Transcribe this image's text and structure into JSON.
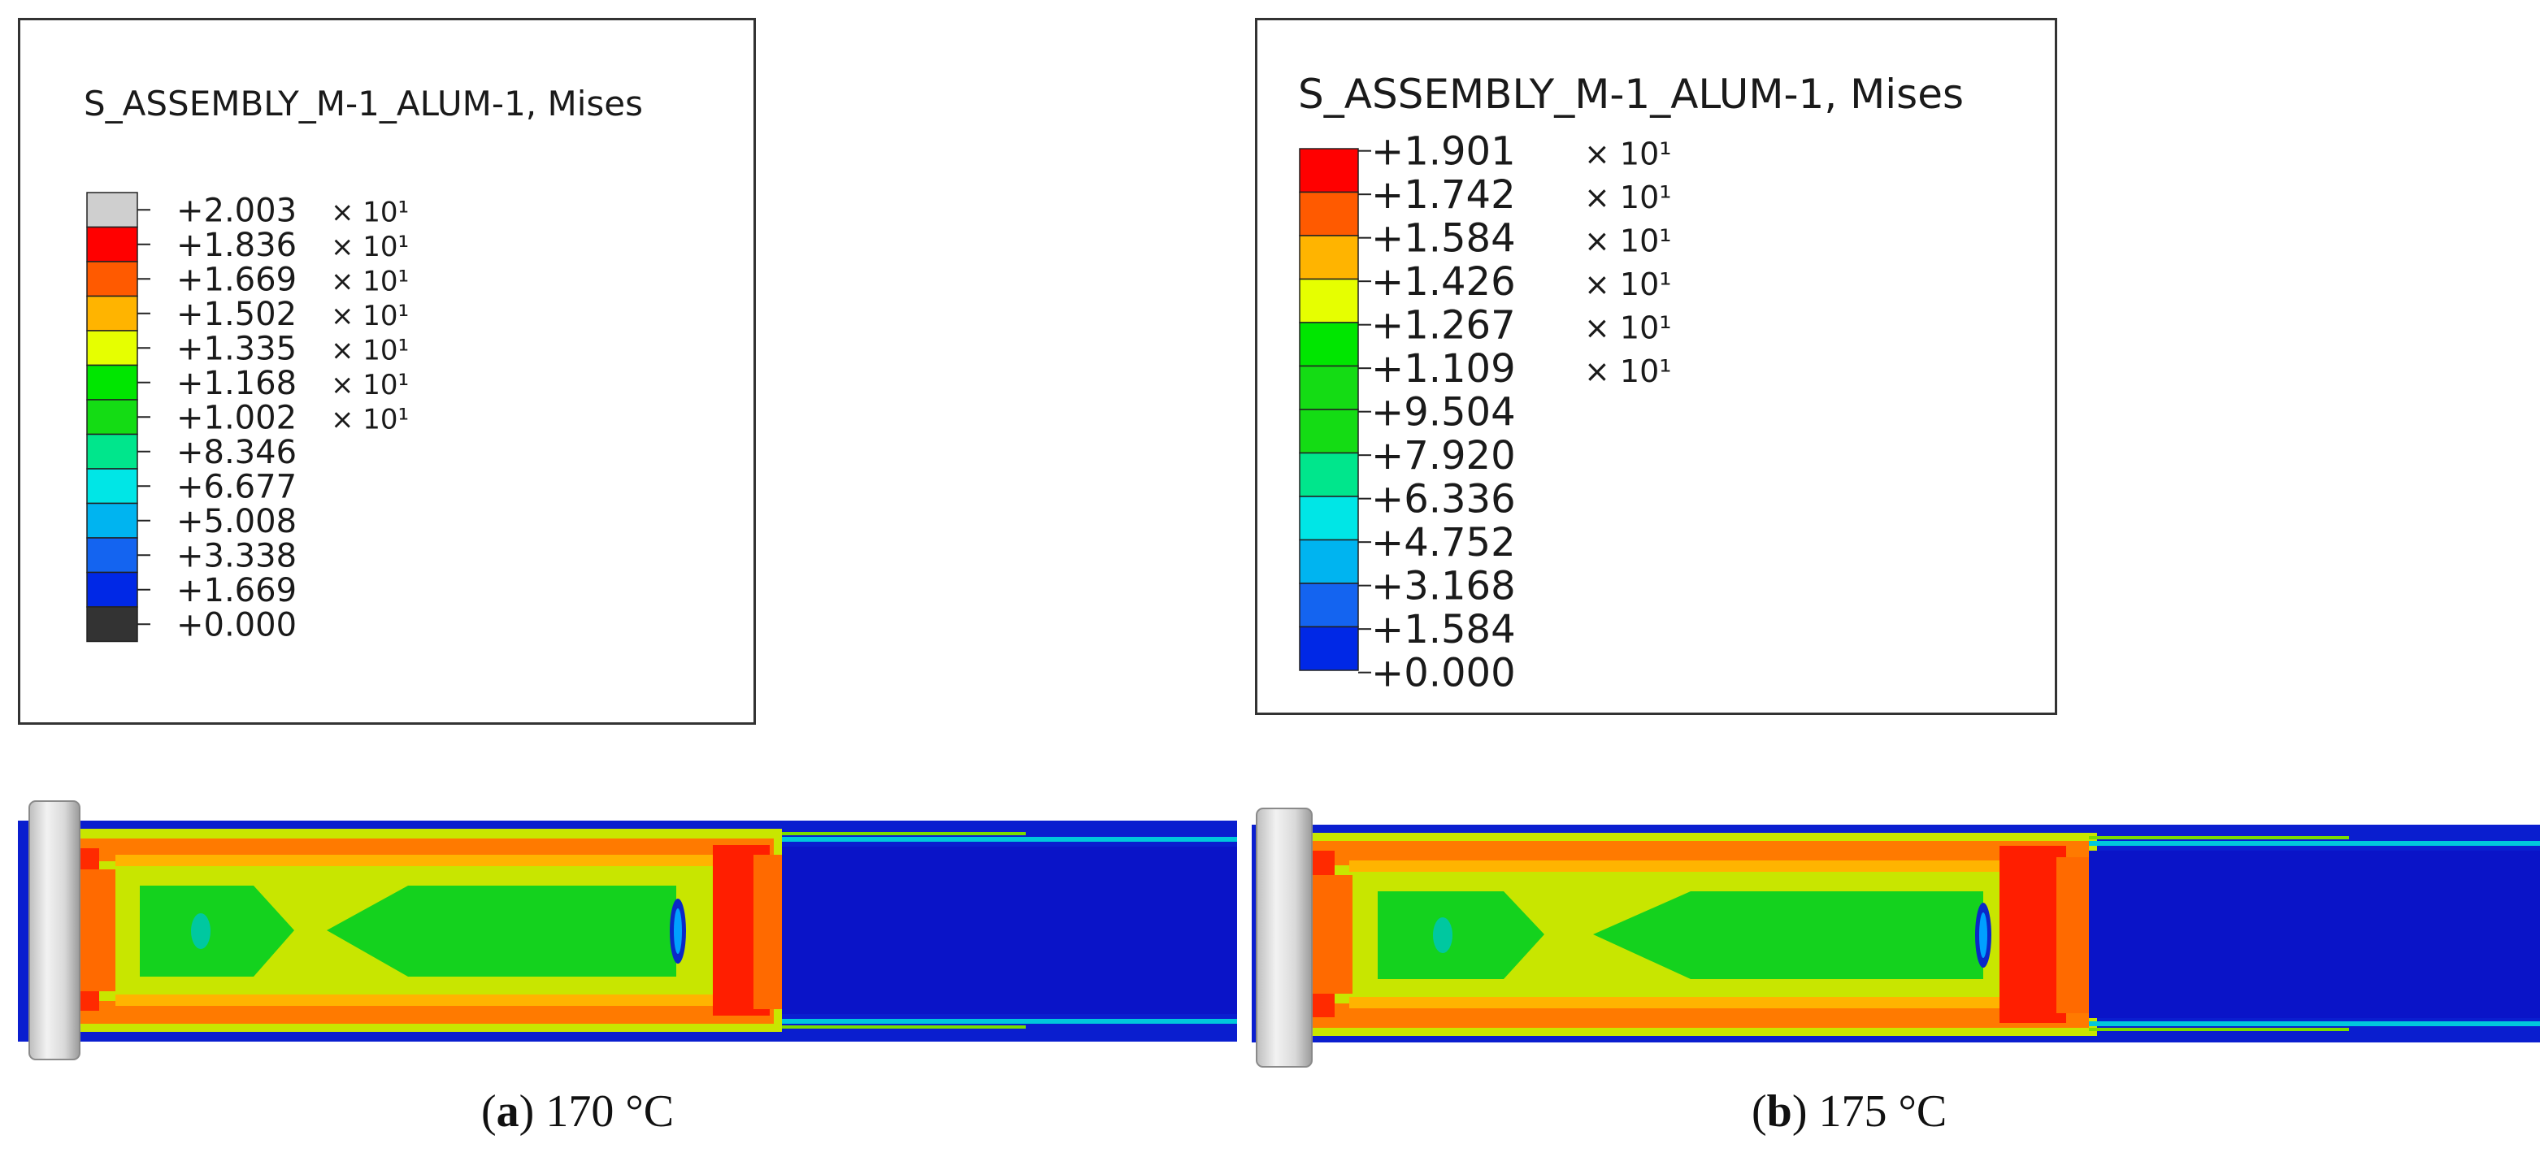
{
  "panels": [
    {
      "id": "a",
      "legend": {
        "title": "S_ASSEMBLY_M-1_ALUM-1, Mises",
        "values": [
          "+2.003",
          "+1.836",
          "+1.669",
          "+1.502",
          "+1.335",
          "+1.168",
          "+1.002",
          "+8.346",
          "+6.677",
          "+5.008",
          "+3.338",
          "+1.669",
          "+0.000"
        ],
        "multiplier": [
          "× 10¹",
          "× 10¹",
          "× 10¹",
          "× 10¹",
          "× 10¹",
          "× 10¹",
          "× 10¹",
          "",
          "",
          "",
          "",
          "",
          ""
        ],
        "colors": [
          "#cfcfcf",
          "#ff0000",
          "#ff5a00",
          "#ffb400",
          "#e6ff00",
          "#00e600",
          "#14dc14",
          "#00e68c",
          "#00e6e6",
          "#00b4f0",
          "#1464f0",
          "#0028e6",
          "#333333"
        ]
      },
      "caption": {
        "letter": "a",
        "text": "170 °C"
      }
    },
    {
      "id": "b",
      "legend": {
        "title": "S_ASSEMBLY_M-1_ALUM-1, Mises",
        "values": [
          "+1.901",
          "+1.742",
          "+1.584",
          "+1.426",
          "+1.267",
          "+1.109",
          "+9.504",
          "+7.920",
          "+6.336",
          "+4.752",
          "+3.168",
          "+1.584",
          "+0.000"
        ],
        "multiplier": [
          "× 10¹",
          "× 10¹",
          "× 10¹",
          "× 10¹",
          "× 10¹",
          "× 10¹",
          "",
          "",
          "",
          "",
          "",
          "",
          ""
        ],
        "colors": [
          "#ff0000",
          "#ff5a00",
          "#ffb400",
          "#e6ff00",
          "#00e600",
          "#14dc14",
          "#14dc14",
          "#00e68c",
          "#00e6e6",
          "#00b4f0",
          "#1464f0",
          "#0028e6"
        ]
      },
      "caption": {
        "letter": "b",
        "text": "175 °C"
      }
    }
  ]
}
